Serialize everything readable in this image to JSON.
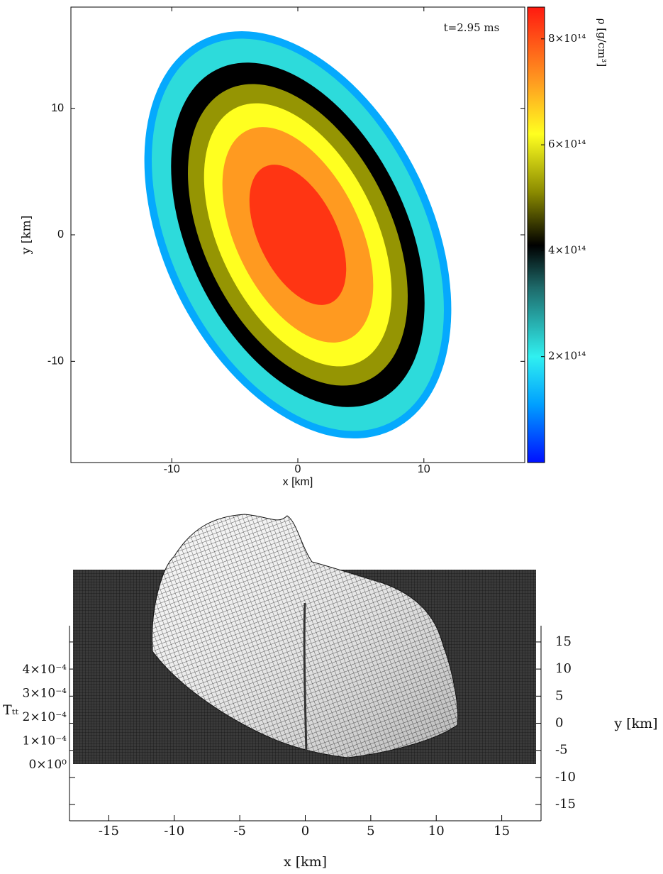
{
  "chart_data": [
    {
      "type": "density",
      "annotation": "t=2.95 ms",
      "x_label": "x [km]",
      "y_label": "y [km]",
      "xlim": [
        -18,
        18
      ],
      "ylim": [
        -18,
        18
      ],
      "xticks": [
        -10,
        0,
        10
      ],
      "yticks": [
        -10,
        0,
        10
      ],
      "colorbar": {
        "label": "ρ [g/cm³]",
        "clim": [
          0,
          860000000000000
        ],
        "ticks": [
          {
            "value": 200000000000000,
            "label": "2×10¹⁴"
          },
          {
            "value": 400000000000000,
            "label": "4×10¹⁴"
          },
          {
            "value": 600000000000000,
            "label": "6×10¹⁴"
          },
          {
            "value": 800000000000000,
            "label": "8×10¹⁴"
          }
        ],
        "colorscale": [
          {
            "value": 0,
            "color": "#0010ff"
          },
          {
            "value": 110000000000000,
            "color": "#00a0ff"
          },
          {
            "value": 200000000000000,
            "color": "#30f0f0"
          },
          {
            "value": 330000000000000,
            "color": "#1e6a6a"
          },
          {
            "value": 410000000000000,
            "color": "#000000"
          },
          {
            "value": 510000000000000,
            "color": "#8a8a00"
          },
          {
            "value": 620000000000000,
            "color": "#ffff20"
          },
          {
            "value": 720000000000000,
            "color": "#ff9a20"
          },
          {
            "value": 860000000000000,
            "color": "#ff1a10"
          }
        ]
      },
      "contours": [
        {
          "level": 120000000000000,
          "center": [
            0,
            0
          ],
          "semi_axes": [
            17.2,
            10.6
          ],
          "angle": -64
        },
        {
          "level": 220000000000000,
          "center": [
            0,
            0
          ],
          "semi_axes": [
            16.6,
            10
          ],
          "angle": -64
        },
        {
          "level": 410000000000000,
          "center": [
            0,
            0
          ],
          "semi_axes": [
            14.6,
            8.6
          ],
          "angle": -64
        },
        {
          "level": 520000000000000,
          "center": [
            0,
            0
          ],
          "semi_axes": [
            12.8,
            7.4
          ],
          "angle": -64
        },
        {
          "level": 620000000000000,
          "center": [
            0,
            0
          ],
          "semi_axes": [
            11.2,
            6.2
          ],
          "angle": -64
        },
        {
          "level": 720000000000000,
          "center": [
            0,
            0
          ],
          "semi_axes": [
            9.2,
            4.9
          ],
          "angle": -64
        },
        {
          "level": 830000000000000,
          "center": [
            0,
            0
          ],
          "semi_axes": [
            6,
            3.1
          ],
          "angle": -64
        }
      ]
    },
    {
      "type": "surface",
      "x_label": "x [km]",
      "y_label": "y [km]",
      "z_label": "Tₜₜ",
      "xlim": [
        -18,
        18
      ],
      "ylim": [
        -18,
        18
      ],
      "zlim": [
        -0.000234,
        0.000587
      ],
      "xticks": [
        -15,
        -10,
        -5,
        0,
        5,
        10,
        15
      ],
      "yticks": [
        -15,
        -10,
        -5,
        0,
        5,
        10,
        15
      ],
      "zticks": [
        {
          "value": 0,
          "label": "0×10⁰"
        },
        {
          "value": 0.0001,
          "label": "1×10⁻⁴"
        },
        {
          "value": 0.0002,
          "label": "2×10⁻⁴"
        },
        {
          "value": 0.0003,
          "label": "3×10⁻⁴"
        },
        {
          "value": 0.0004,
          "label": "4×10⁻⁴"
        }
      ]
    }
  ]
}
